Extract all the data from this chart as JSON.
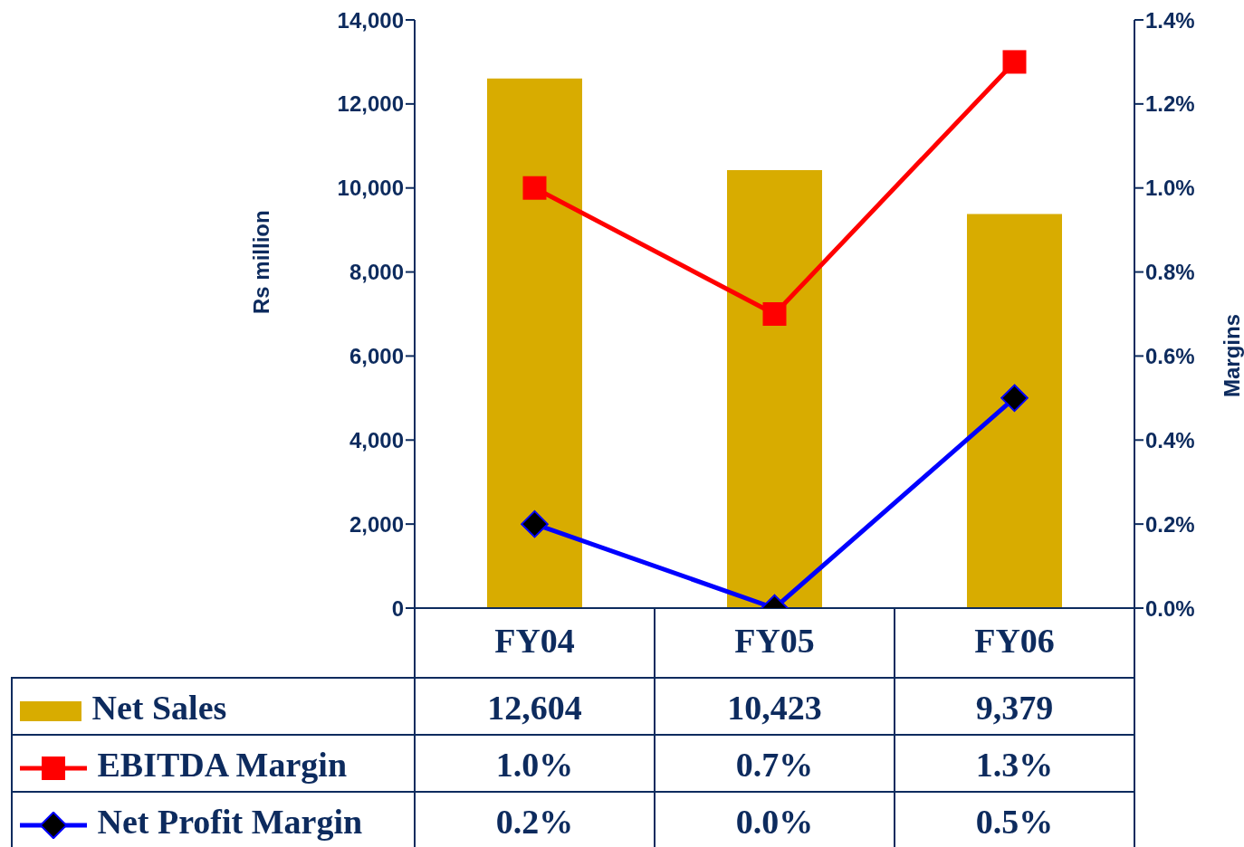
{
  "chart_data": {
    "type": "bar",
    "ylabel": "Rs million",
    "y2label": "Margins",
    "categories": [
      "FY04",
      "FY05",
      "FY06"
    ],
    "series": [
      {
        "name": "Net Sales",
        "color": "#d8ac00",
        "values": [
          12604,
          10423,
          9379
        ],
        "value_labels": [
          "12,604",
          "10,423",
          "9,379"
        ]
      },
      {
        "name": "EBITDA Margin",
        "type": "line",
        "axis": "y2",
        "color": "#ff0000",
        "marker": "square",
        "values": [
          1.0,
          0.7,
          1.3
        ],
        "value_labels": [
          "1.0%",
          "0.7%",
          "1.3%"
        ]
      },
      {
        "name": "Net Profit Margin",
        "type": "line",
        "axis": "y2",
        "color": "#0000ff",
        "marker": "diamond",
        "values": [
          0.2,
          0.0,
          0.5
        ],
        "value_labels": [
          "0.2%",
          "0.0%",
          "0.5%"
        ]
      }
    ],
    "ylim": [
      0,
      14000
    ],
    "yticks": [
      {
        "value": 0,
        "label": "0"
      },
      {
        "value": 2000,
        "label": "2,000"
      },
      {
        "value": 4000,
        "label": "4,000"
      },
      {
        "value": 6000,
        "label": "6,000"
      },
      {
        "value": 8000,
        "label": "8,000"
      },
      {
        "value": 10000,
        "label": "10,000"
      },
      {
        "value": 12000,
        "label": "12,000"
      },
      {
        "value": 14000,
        "label": "14,000"
      }
    ],
    "y2lim": [
      0,
      1.4
    ],
    "y2ticks": [
      {
        "value": 0,
        "label": "0.0%"
      },
      {
        "value": 0.2,
        "label": "0.2%"
      },
      {
        "value": 0.4,
        "label": "0.4%"
      },
      {
        "value": 0.6,
        "label": "0.6%"
      },
      {
        "value": 0.8,
        "label": "0.8%"
      },
      {
        "value": 1.0,
        "label": "1.0%"
      },
      {
        "value": 1.2,
        "label": "1.2%"
      },
      {
        "value": 1.4,
        "label": "1.4%"
      }
    ],
    "legend": "bottom"
  }
}
